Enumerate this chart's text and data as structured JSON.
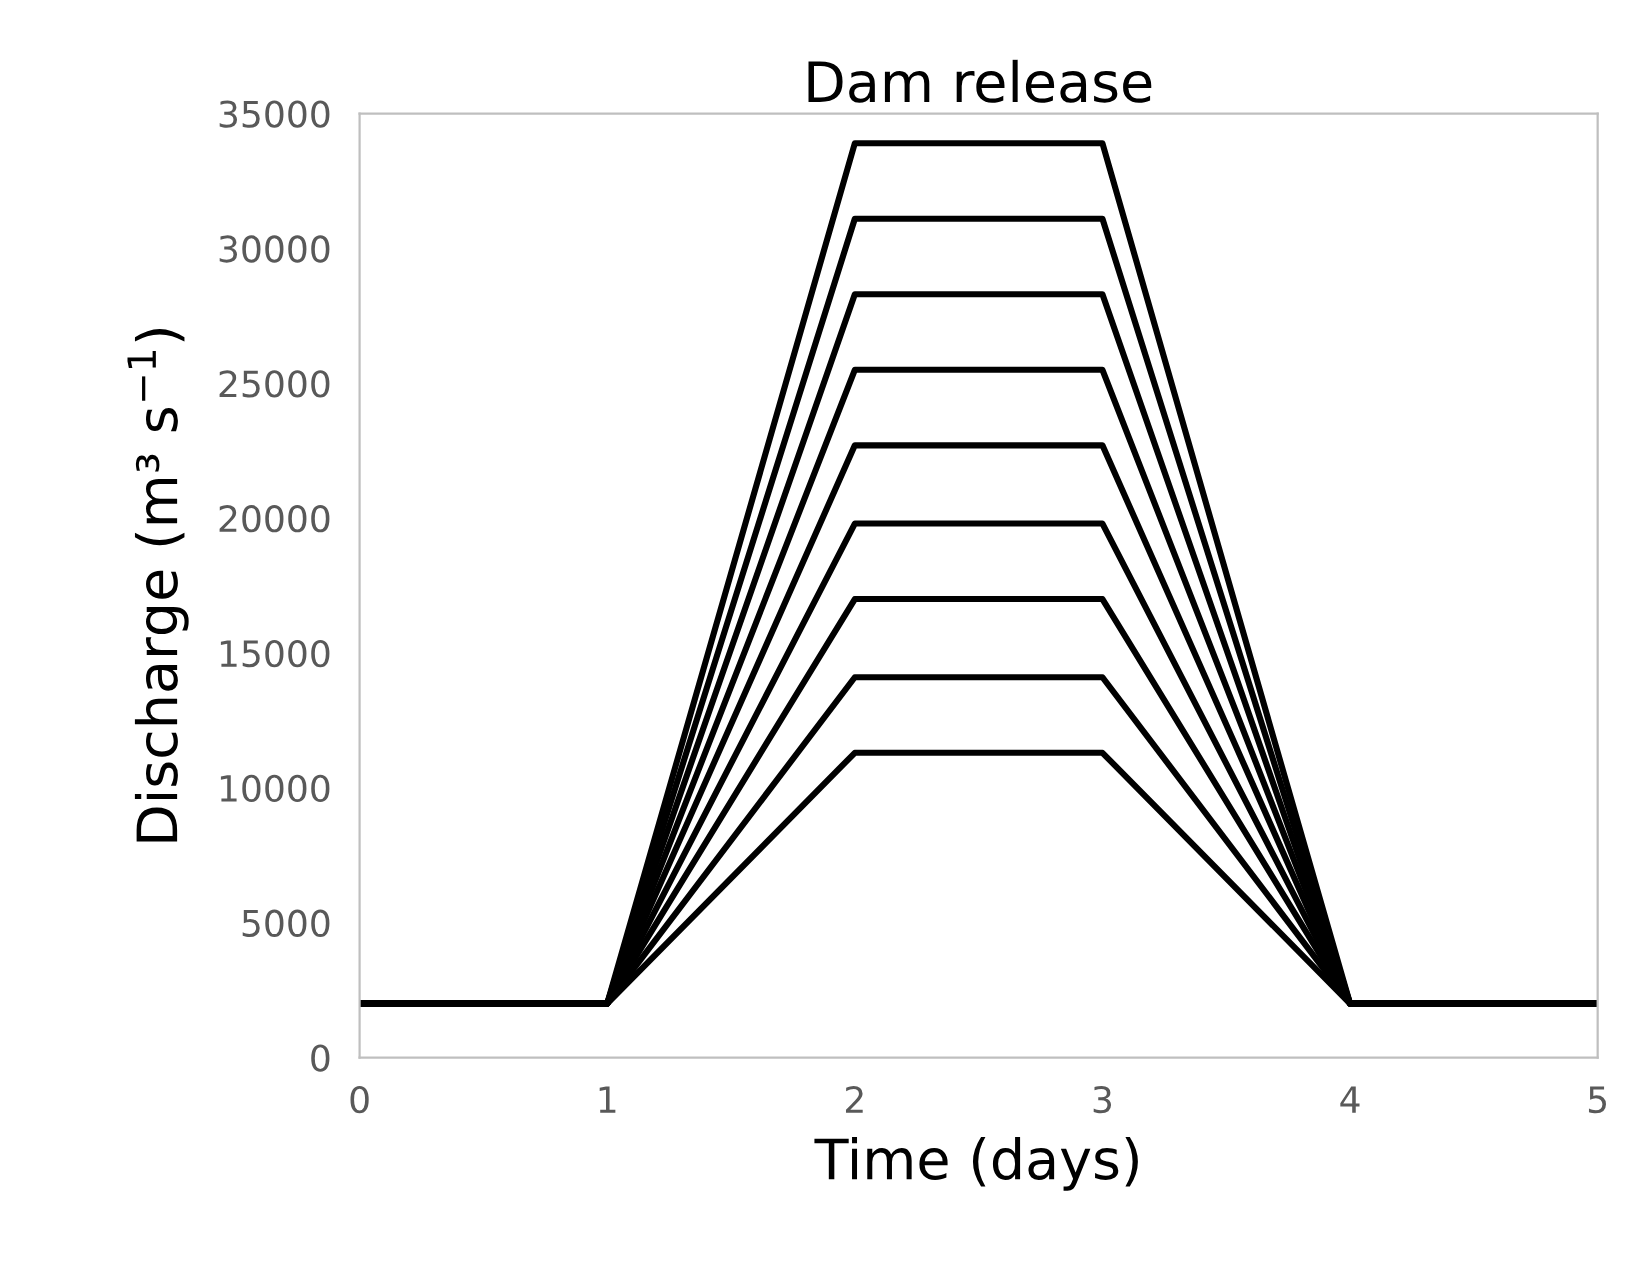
{
  "chart_data": {
    "type": "line",
    "title": "Dam release",
    "xlabel": "Time (days)",
    "ylabel": "Discharge (m³ s$^{−1}$)",
    "x": [
      0,
      1,
      2,
      3,
      4,
      5
    ],
    "series": [
      {
        "color": "#000000",
        "values": [
          2000,
          2000,
          33900,
          33900,
          2000,
          2000
        ]
      },
      {
        "color": "#000000",
        "values": [
          2000,
          2000,
          31100,
          31100,
          2000,
          2000
        ]
      },
      {
        "color": "#000000",
        "values": [
          2000,
          2000,
          28300,
          28300,
          2000,
          2000
        ]
      },
      {
        "color": "#000000",
        "values": [
          2000,
          2000,
          25500,
          25500,
          2000,
          2000
        ]
      },
      {
        "color": "#000000",
        "values": [
          2000,
          2000,
          22700,
          22700,
          2000,
          2000
        ]
      },
      {
        "color": "#000000",
        "values": [
          2000,
          2000,
          19800,
          19800,
          2000,
          2000
        ]
      },
      {
        "color": "#000000",
        "values": [
          2000,
          2000,
          17000,
          17000,
          2000,
          2000
        ]
      },
      {
        "color": "#000000",
        "values": [
          2000,
          2000,
          14100,
          14100,
          2000,
          2000
        ]
      },
      {
        "color": "#000000",
        "values": [
          2000,
          2000,
          11300,
          11300,
          2000,
          2000
        ]
      }
    ],
    "xlim": [
      0,
      5
    ],
    "xticks": [
      0,
      1,
      2,
      3,
      4,
      5
    ],
    "ylim": [
      0,
      35000
    ],
    "yticks": [
      0,
      5000,
      10000,
      15000,
      20000,
      25000,
      30000,
      35000
    ],
    "marker": "none",
    "line_style": "solid"
  }
}
